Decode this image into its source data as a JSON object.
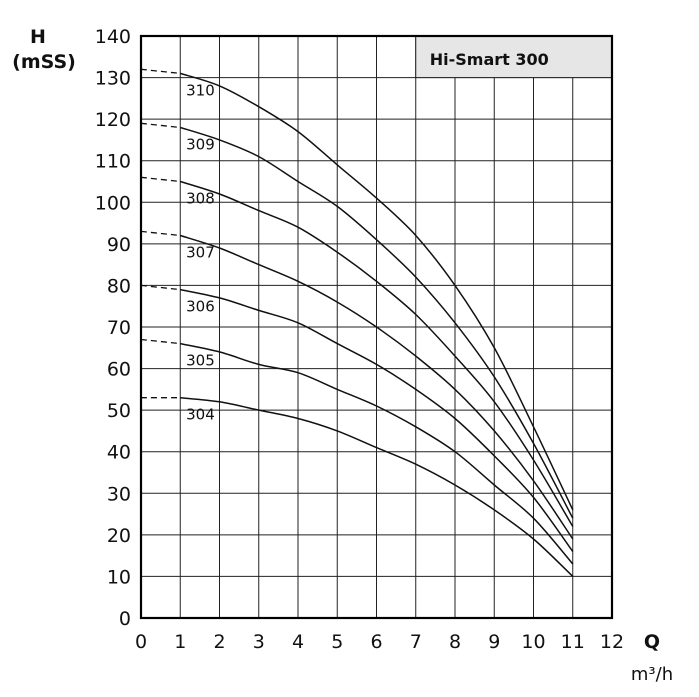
{
  "chart_data": {
    "type": "line",
    "title": "Hi-Smart 300",
    "ylabel_line1": "H",
    "ylabel_line2": "(mSS)",
    "xlabel": "Q",
    "xunit": "m³/h",
    "xlim": [
      0,
      12
    ],
    "ylim": [
      0,
      140
    ],
    "xticks": [
      "0",
      "1",
      "2",
      "3",
      "4",
      "5",
      "6",
      "7",
      "8",
      "9",
      "10",
      "11",
      "12"
    ],
    "yticks": [
      "0",
      "10",
      "20",
      "30",
      "40",
      "50",
      "60",
      "70",
      "80",
      "90",
      "100",
      "110",
      "120",
      "130",
      "140"
    ],
    "grid": true,
    "colors": {
      "line": "#111111",
      "grid": "#222222",
      "title_box": "#e6e6e6"
    },
    "series": [
      {
        "name": "310",
        "x": [
          0,
          1,
          2,
          3,
          4,
          5,
          6,
          7,
          8,
          9,
          10,
          11
        ],
        "y": [
          132,
          131,
          128,
          123,
          117,
          109,
          101,
          92,
          80,
          65,
          46,
          26
        ]
      },
      {
        "name": "309",
        "x": [
          0,
          1,
          2,
          3,
          4,
          5,
          6,
          7,
          8,
          9,
          10,
          11
        ],
        "y": [
          119,
          118,
          115,
          111,
          105,
          99,
          91,
          82,
          71,
          58,
          42,
          24
        ]
      },
      {
        "name": "308",
        "x": [
          0,
          1,
          2,
          3,
          4,
          5,
          6,
          7,
          8,
          9,
          10,
          11
        ],
        "y": [
          106,
          105,
          102,
          98,
          94,
          88,
          81,
          73,
          63,
          52,
          38,
          22
        ]
      },
      {
        "name": "307",
        "x": [
          0,
          1,
          2,
          3,
          4,
          5,
          6,
          7,
          8,
          9,
          10,
          11
        ],
        "y": [
          93,
          92,
          89,
          85,
          81,
          76,
          70,
          63,
          55,
          45,
          33,
          19
        ]
      },
      {
        "name": "306",
        "x": [
          0,
          1,
          2,
          3,
          4,
          5,
          6,
          7,
          8,
          9,
          10,
          11
        ],
        "y": [
          80,
          79,
          77,
          74,
          71,
          66,
          61,
          55,
          48,
          39,
          29,
          16
        ]
      },
      {
        "name": "305",
        "x": [
          0,
          1,
          2,
          3,
          4,
          5,
          6,
          7,
          8,
          9,
          10,
          11
        ],
        "y": [
          67,
          66,
          64,
          61,
          59,
          55,
          51,
          46,
          40,
          32,
          24,
          13
        ]
      },
      {
        "name": "304",
        "x": [
          0,
          1,
          2,
          3,
          4,
          5,
          6,
          7,
          8,
          9,
          10,
          11
        ],
        "y": [
          53,
          53,
          52,
          50,
          48,
          45,
          41,
          37,
          32,
          26,
          19,
          10
        ]
      }
    ]
  }
}
